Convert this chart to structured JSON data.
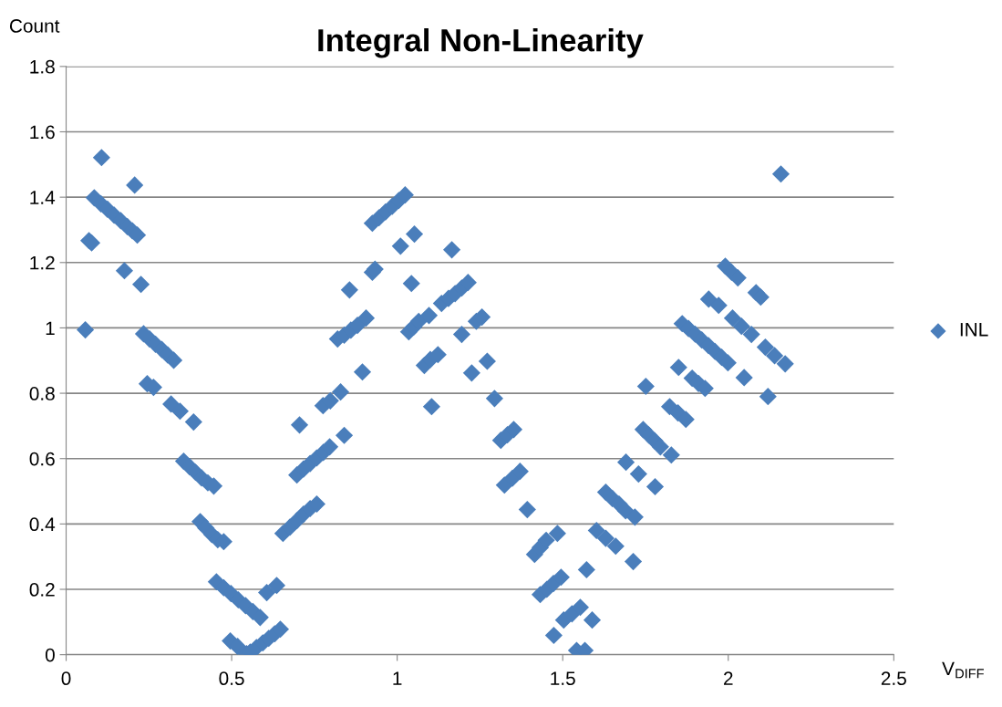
{
  "chart_data": {
    "type": "scatter",
    "title": "Integral Non-Linearity",
    "xlabel": "V$_{DIFF}$",
    "ylabel": "Count",
    "xlim": [
      0,
      2.5
    ],
    "xticks": [
      0,
      0.5,
      1,
      1.5,
      2,
      2.5
    ],
    "ylim": [
      0,
      1.8
    ],
    "yticks": [
      0,
      0.2,
      0.4,
      0.6,
      0.8,
      1,
      1.2,
      1.4,
      1.6,
      1.8
    ],
    "grid": "y",
    "legend": "right",
    "marker": "diamond",
    "series": [
      {
        "name": "INL",
        "color": "#4a7ebb",
        "x": [
          0.058,
          0.069,
          0.077,
          0.107,
          0.085,
          0.105,
          0.125,
          0.145,
          0.165,
          0.185,
          0.2,
          0.215,
          0.207,
          0.176,
          0.226,
          0.234,
          0.252,
          0.27,
          0.289,
          0.307,
          0.325,
          0.245,
          0.264,
          0.317,
          0.344,
          0.385,
          0.355,
          0.373,
          0.391,
          0.409,
          0.428,
          0.446,
          0.405,
          0.422,
          0.44,
          0.458,
          0.476,
          0.454,
          0.476,
          0.498,
          0.52,
          0.542,
          0.564,
          0.586,
          0.496,
          0.518,
          0.545,
          0.556,
          0.575,
          0.594,
          0.612,
          0.63,
          0.647,
          0.606,
          0.636,
          0.655,
          0.676,
          0.697,
          0.717,
          0.737,
          0.757,
          0.705,
          0.697,
          0.717,
          0.737,
          0.757,
          0.777,
          0.796,
          0.776,
          0.798,
          0.829,
          0.84,
          0.82,
          0.84,
          0.86,
          0.88,
          0.906,
          0.895,
          0.856,
          0.925,
          0.933,
          0.925,
          0.945,
          0.965,
          0.985,
          1.005,
          1.024,
          1.01,
          1.052,
          1.043,
          1.165,
          1.035,
          1.05,
          1.065,
          1.096,
          1.082,
          1.1,
          1.123,
          1.104,
          1.134,
          1.155,
          1.175,
          1.195,
          1.214,
          1.195,
          1.239,
          1.256,
          1.225,
          1.272,
          1.294,
          1.313,
          1.333,
          1.352,
          1.324,
          1.348,
          1.371,
          1.393,
          1.415,
          1.432,
          1.45,
          1.484,
          1.432,
          1.452,
          1.472,
          1.495,
          1.473,
          1.503,
          1.528,
          1.553,
          1.542,
          1.567,
          1.589,
          1.572,
          1.602,
          1.63,
          1.66,
          1.713,
          1.63,
          1.65,
          1.67,
          1.69,
          1.718,
          1.691,
          1.729,
          1.779,
          1.743,
          1.76,
          1.778,
          1.795,
          1.828,
          1.751,
          1.823,
          1.848,
          1.872,
          1.85,
          1.891,
          1.91,
          1.93,
          1.861,
          1.88,
          1.9,
          1.92,
          1.94,
          1.96,
          1.98,
          1.999,
          1.941,
          1.971,
          1.991,
          2.01,
          2.029,
          2.013,
          2.04,
          2.07,
          2.048,
          2.084,
          2.098,
          2.112,
          2.14,
          2.172,
          2.12,
          2.159
        ],
        "values": [
          0.994,
          1.267,
          1.26,
          1.521,
          1.398,
          1.38,
          1.363,
          1.345,
          1.328,
          1.31,
          1.297,
          1.284,
          1.437,
          1.175,
          1.133,
          0.982,
          0.966,
          0.95,
          0.934,
          0.917,
          0.901,
          0.829,
          0.818,
          0.767,
          0.745,
          0.712,
          0.592,
          0.575,
          0.558,
          0.541,
          0.526,
          0.516,
          0.407,
          0.388,
          0.368,
          0.352,
          0.346,
          0.223,
          0.205,
          0.187,
          0.168,
          0.15,
          0.132,
          0.114,
          0.042,
          0.025,
          0.003,
          0.008,
          0.022,
          0.036,
          0.05,
          0.064,
          0.078,
          0.19,
          0.212,
          0.371,
          0.39,
          0.41,
          0.43,
          0.447,
          0.461,
          0.703,
          0.55,
          0.568,
          0.585,
          0.602,
          0.619,
          0.636,
          0.762,
          0.777,
          0.804,
          0.671,
          0.966,
          0.978,
          0.993,
          1.008,
          1.03,
          0.865,
          1.116,
          1.17,
          1.18,
          1.32,
          1.337,
          1.355,
          1.372,
          1.39,
          1.407,
          1.25,
          1.287,
          1.136,
          1.239,
          0.988,
          1.003,
          1.02,
          1.038,
          0.885,
          0.903,
          0.918,
          0.759,
          1.075,
          1.09,
          1.105,
          1.122,
          1.139,
          0.98,
          1.02,
          1.033,
          0.862,
          0.898,
          0.784,
          0.656,
          0.673,
          0.689,
          0.519,
          0.54,
          0.561,
          0.444,
          0.307,
          0.328,
          0.35,
          0.371,
          0.184,
          0.2,
          0.218,
          0.237,
          0.059,
          0.106,
          0.125,
          0.145,
          0.013,
          0.013,
          0.106,
          0.26,
          0.38,
          0.356,
          0.332,
          0.285,
          0.497,
          0.478,
          0.461,
          0.44,
          0.421,
          0.589,
          0.553,
          0.514,
          0.689,
          0.672,
          0.654,
          0.636,
          0.611,
          0.821,
          0.759,
          0.74,
          0.72,
          0.879,
          0.846,
          0.83,
          0.815,
          1.013,
          0.998,
          0.981,
          0.963,
          0.946,
          0.928,
          0.91,
          0.893,
          1.088,
          1.069,
          1.189,
          1.17,
          1.153,
          1.03,
          1.005,
          0.98,
          0.848,
          1.108,
          1.094,
          0.941,
          0.915,
          0.89,
          0.79,
          1.471
        ]
      }
    ]
  }
}
